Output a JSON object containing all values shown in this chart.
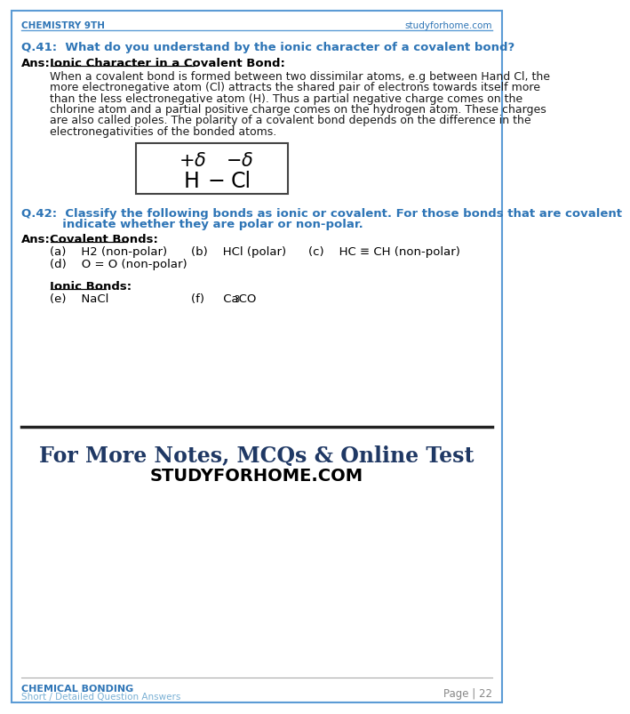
{
  "page_bg": "#ffffff",
  "border_color": "#5b9bd5",
  "header_left": "CHEMISTRY 9TH",
  "header_right": "studyforhome.com",
  "header_color": "#2e75b6",
  "header_line_color": "#5b9bd5",
  "q41_text": "Q.41:  What do you understand by the ionic character of a covalent bond?",
  "q41_color": "#2e75b6",
  "ans_label": "Ans:",
  "ans_color": "#000000",
  "ionic_char_title": "Ionic Character in a Covalent Bond:",
  "body_text_41": [
    "When a covalent bond is formed between two dissimilar atoms, e.g between Hand Cl, the",
    "more electronegative atom (Cl) attracts the shared pair of electrons towards itself more",
    "than the less electronegative atom (H). Thus a partial negative charge comes on the",
    "chlorine atom and a partial positive charge comes on the hydrogen atom. These charges",
    "are also called poles. The polarity of a covalent bond depends on the difference in the",
    "electronegativities of the bonded atoms."
  ],
  "q42_line1": "Q.42:  Classify the following bonds as ionic or covalent. For those bonds that are covalent",
  "q42_line2": "          indicate whether they are polar or non-polar.",
  "q42_color": "#2e75b6",
  "covalent_title": "Covalent Bonds:",
  "covalent_a": "(a)    H2 (non-polar)",
  "covalent_b": "(b)    HCl (polar)",
  "covalent_c": "(c)    HC ≡ CH (non-polar)",
  "covalent_d": "(d)    O = O (non-polar)",
  "ionic_title": "Ionic Bonds:",
  "ionic_e": "(e)    NaCl",
  "ionic_f_prefix": "(f)     CaCO",
  "ionic_f_sub": "3",
  "footer_line1": "For More Notes, MCQs & Online Test",
  "footer_line2": "STUDYFORHOME.COM",
  "footer_text_color1": "#1f3864",
  "footer_text_color2": "#000000",
  "bottom_left1": "CHEMICAL BONDING",
  "bottom_left2": "Short / Detailed Question Answers",
  "bottom_right": "Page | 22",
  "bottom_color": "#2e75b6",
  "bottom_line_color": "#aaaaaa",
  "watermark_text": "studyforhome.com"
}
